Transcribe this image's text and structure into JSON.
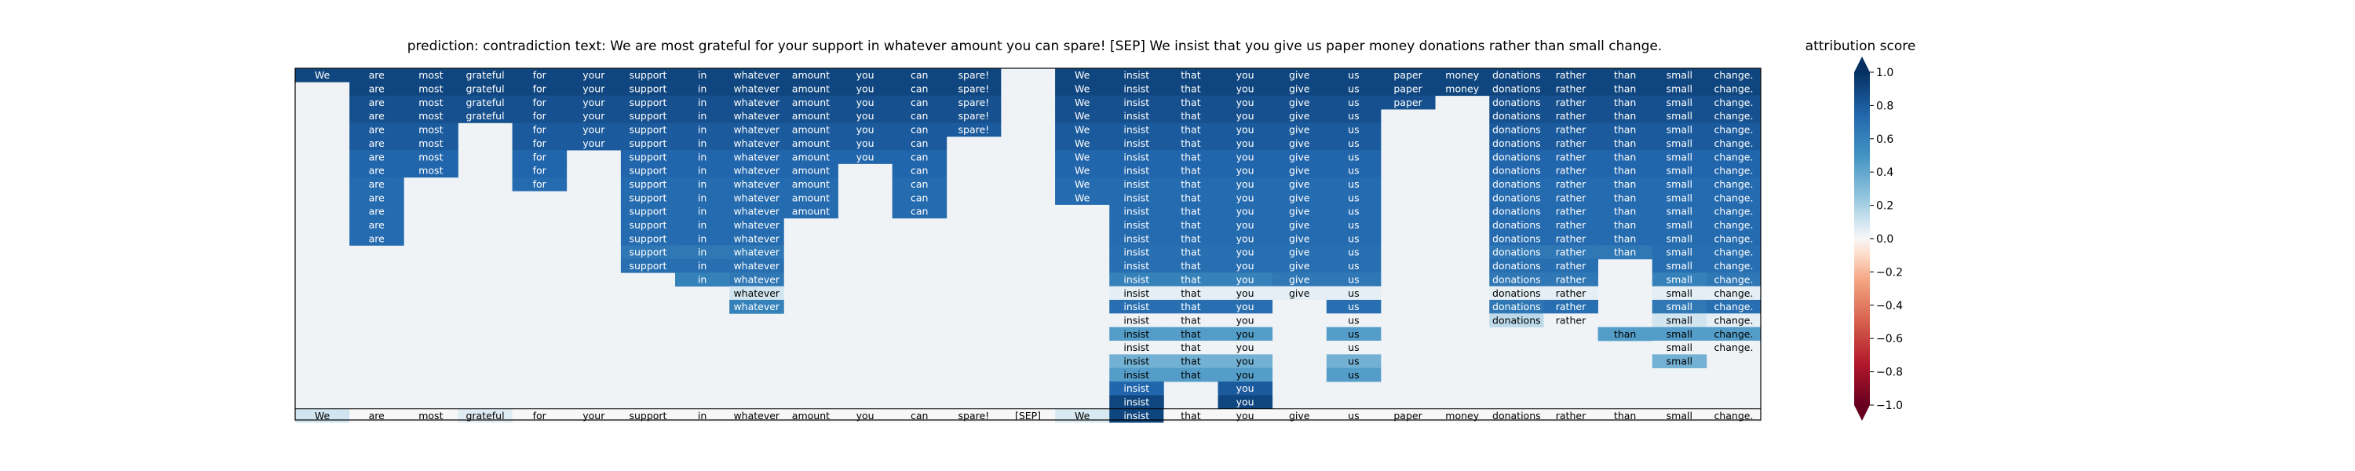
{
  "chart_data": {
    "type": "heatmap",
    "title": "prediction:  contradiction     text:  We are most grateful for your support in whatever amount you can spare! [SEP] We insist that you give us paper money donations rather than small change.",
    "colorbar": {
      "label": "attribution score",
      "range": [
        -1.0,
        1.0
      ],
      "ticks": [
        "1.0",
        "0.8",
        "0.6",
        "0.4",
        "0.2",
        "0.0",
        "−0.2",
        "−0.4",
        "−0.6",
        "−0.8",
        "−1.0"
      ],
      "tick_values": [
        1.0,
        0.8,
        0.6,
        0.4,
        0.2,
        0.0,
        -0.2,
        -0.4,
        -0.6,
        -0.8,
        -1.0
      ],
      "colormap": "RdBu",
      "extend": "both"
    },
    "tokens": [
      "We",
      "are",
      "most",
      "grateful",
      "for",
      "your",
      "support",
      "in",
      "whatever",
      "amount",
      "you",
      "can",
      "spare!",
      "[SEP]",
      "We",
      "insist",
      "that",
      "you",
      "give",
      "us",
      "paper",
      "money",
      "donations",
      "rather",
      "than",
      "small",
      "change."
    ],
    "n_rows": 25,
    "matrix": [
      [
        0.9,
        0.9,
        0.9,
        0.9,
        0.9,
        0.9,
        0.9,
        0.9,
        0.9,
        0.9,
        0.9,
        0.9,
        0.9,
        0,
        0.9,
        0.9,
        0.9,
        0.9,
        0.9,
        0.9,
        0.9,
        0.9,
        0.9,
        0.9,
        0.9,
        0.9,
        0.9
      ],
      [
        0,
        0.9,
        0.9,
        0.9,
        0.9,
        0.9,
        0.9,
        0.9,
        0.9,
        0.9,
        0.9,
        0.9,
        0.9,
        0,
        0.9,
        0.9,
        0.9,
        0.9,
        0.9,
        0.9,
        0.9,
        0.9,
        0.9,
        0.9,
        0.9,
        0.9,
        0.9
      ],
      [
        0,
        0.85,
        0.85,
        0.85,
        0.85,
        0.85,
        0.85,
        0.85,
        0.85,
        0.85,
        0.85,
        0.85,
        0.85,
        0,
        0.85,
        0.85,
        0.85,
        0.85,
        0.85,
        0.85,
        0.85,
        0,
        0.85,
        0.85,
        0.85,
        0.85,
        0.85
      ],
      [
        0,
        0.85,
        0.85,
        0.85,
        0.85,
        0.85,
        0.85,
        0.85,
        0.85,
        0.85,
        0.85,
        0.85,
        0.85,
        0,
        0.85,
        0.85,
        0.85,
        0.85,
        0.85,
        0.85,
        0,
        0,
        0.85,
        0.85,
        0.85,
        0.85,
        0.85
      ],
      [
        0,
        0.8,
        0.8,
        0,
        0.8,
        0.8,
        0.8,
        0.8,
        0.8,
        0.8,
        0.8,
        0.8,
        0.8,
        0,
        0.8,
        0.8,
        0.8,
        0.8,
        0.8,
        0.8,
        0,
        0,
        0.8,
        0.8,
        0.8,
        0.8,
        0.8
      ],
      [
        0,
        0.8,
        0.8,
        0,
        0.8,
        0.8,
        0.8,
        0.8,
        0.8,
        0.8,
        0.8,
        0.8,
        0,
        0,
        0.8,
        0.8,
        0.8,
        0.8,
        0.8,
        0.8,
        0,
        0,
        0.8,
        0.8,
        0.8,
        0.8,
        0.8
      ],
      [
        0,
        0.75,
        0.75,
        0,
        0.75,
        0,
        0.75,
        0.75,
        0.75,
        0.75,
        0.75,
        0.75,
        0,
        0,
        0.75,
        0.75,
        0.75,
        0.75,
        0.75,
        0.75,
        0,
        0,
        0.75,
        0.75,
        0.75,
        0.75,
        0.75
      ],
      [
        0,
        0.75,
        0.75,
        0,
        0.75,
        0,
        0.75,
        0.75,
        0.75,
        0.75,
        0,
        0.75,
        0,
        0,
        0.75,
        0.75,
        0.75,
        0.75,
        0.75,
        0.75,
        0,
        0,
        0.75,
        0.75,
        0.75,
        0.75,
        0.75
      ],
      [
        0,
        0.72,
        0,
        0,
        0.72,
        0,
        0.72,
        0.72,
        0.72,
        0.72,
        0,
        0.72,
        0,
        0,
        0.72,
        0.72,
        0.72,
        0.72,
        0.72,
        0.72,
        0,
        0,
        0.72,
        0.72,
        0.72,
        0.72,
        0.72
      ],
      [
        0,
        0.72,
        0,
        0,
        0,
        0,
        0.72,
        0.72,
        0.72,
        0.72,
        0,
        0.72,
        0,
        0,
        0.72,
        0.72,
        0.72,
        0.72,
        0.72,
        0.72,
        0,
        0,
        0.72,
        0.72,
        0.72,
        0.72,
        0.72
      ],
      [
        0,
        0.72,
        0,
        0,
        0,
        0,
        0.72,
        0.72,
        0.72,
        0.72,
        0,
        0.72,
        0,
        0,
        0,
        0.72,
        0.72,
        0.72,
        0.72,
        0.72,
        0,
        0,
        0.72,
        0.72,
        0.72,
        0.72,
        0.72
      ],
      [
        0,
        0.72,
        0,
        0,
        0,
        0,
        0.72,
        0.72,
        0.72,
        0,
        0,
        0,
        0,
        0,
        0,
        0.72,
        0.72,
        0.72,
        0.72,
        0.72,
        0,
        0,
        0.72,
        0.72,
        0.72,
        0.72,
        0.72
      ],
      [
        0,
        0.72,
        0,
        0,
        0,
        0,
        0.72,
        0.72,
        0.72,
        0,
        0,
        0,
        0,
        0,
        0,
        0.72,
        0.72,
        0.72,
        0.72,
        0.72,
        0,
        0,
        0.72,
        0.72,
        0.72,
        0.72,
        0.72
      ],
      [
        0,
        0,
        0,
        0,
        0,
        0,
        0.65,
        0.65,
        0.65,
        0,
        0,
        0,
        0,
        0,
        0,
        0.7,
        0.7,
        0.7,
        0.7,
        0.7,
        0,
        0,
        0.65,
        0.65,
        0.65,
        0.7,
        0.7
      ],
      [
        0,
        0,
        0,
        0,
        0,
        0,
        0.7,
        0.7,
        0.7,
        0,
        0,
        0,
        0,
        0,
        0,
        0.7,
        0.7,
        0.7,
        0.7,
        0.7,
        0,
        0,
        0.7,
        0.7,
        0,
        0.7,
        0.7
      ],
      [
        0,
        0,
        0,
        0,
        0,
        0,
        0,
        0.6,
        0.65,
        0,
        0,
        0,
        0,
        0,
        0,
        0.6,
        0.6,
        0.6,
        0.65,
        0.65,
        0,
        0,
        0.65,
        0.65,
        0,
        0.6,
        0.65
      ],
      [
        0,
        0,
        0,
        0,
        0,
        0,
        0,
        0,
        0.1,
        0,
        0,
        0,
        0,
        0,
        0,
        0.05,
        0.05,
        0.05,
        0.05,
        0.05,
        0,
        0,
        0.05,
        0.05,
        0,
        0.05,
        0.05
      ],
      [
        0,
        0,
        0,
        0,
        0,
        0,
        0,
        0,
        0.6,
        0,
        0,
        0,
        0,
        0,
        0,
        0.7,
        0.7,
        0.7,
        0,
        0.7,
        0,
        0,
        0.65,
        0.7,
        0,
        0.65,
        0.7
      ],
      [
        0,
        0,
        0,
        0,
        0,
        0,
        0,
        0,
        0,
        0,
        0,
        0,
        0,
        0,
        0,
        0.02,
        0.02,
        0.02,
        0,
        0.02,
        0,
        0,
        0.15,
        0.02,
        0,
        0.1,
        0.05
      ],
      [
        0,
        0,
        0,
        0,
        0,
        0,
        0,
        0,
        0,
        0,
        0,
        0,
        0,
        0,
        0,
        0.45,
        0.45,
        0.45,
        0,
        0.45,
        0,
        0,
        0,
        0,
        0.45,
        0.45,
        0.45
      ],
      [
        0,
        0,
        0,
        0,
        0,
        0,
        0,
        0,
        0,
        0,
        0,
        0,
        0,
        0,
        0,
        0.02,
        0.02,
        0.02,
        0,
        0.02,
        0,
        0,
        0,
        0,
        0,
        0.02,
        0.02
      ],
      [
        0,
        0,
        0,
        0,
        0,
        0,
        0,
        0,
        0,
        0,
        0,
        0,
        0,
        0,
        0,
        0.35,
        0.35,
        0.35,
        0,
        0.35,
        0,
        0,
        0,
        0,
        0,
        0.35,
        0
      ],
      [
        0,
        0,
        0,
        0,
        0,
        0,
        0,
        0,
        0,
        0,
        0,
        0,
        0,
        0,
        0,
        0.45,
        0.45,
        0.45,
        0,
        0.45,
        0,
        0,
        0,
        0,
        0,
        0,
        0
      ],
      [
        0,
        0,
        0,
        0,
        0,
        0,
        0,
        0,
        0,
        0,
        0,
        0,
        0,
        0,
        0,
        0.75,
        0,
        0.8,
        0,
        0,
        0,
        0,
        0,
        0,
        0,
        0,
        0
      ],
      [
        0,
        0,
        0,
        0,
        0,
        0,
        0,
        0,
        0,
        0,
        0,
        0,
        0,
        0,
        0,
        0.9,
        0,
        0.9,
        0,
        0,
        0,
        0,
        0,
        0,
        0,
        0,
        0
      ]
    ],
    "bottom_row": [
      0.1,
      0,
      0,
      0.06,
      0,
      0,
      0,
      0,
      0,
      0,
      0,
      0,
      0,
      0,
      0.08,
      0.9,
      0,
      0,
      0,
      0,
      0,
      0,
      0,
      0,
      0,
      0,
      0
    ]
  }
}
